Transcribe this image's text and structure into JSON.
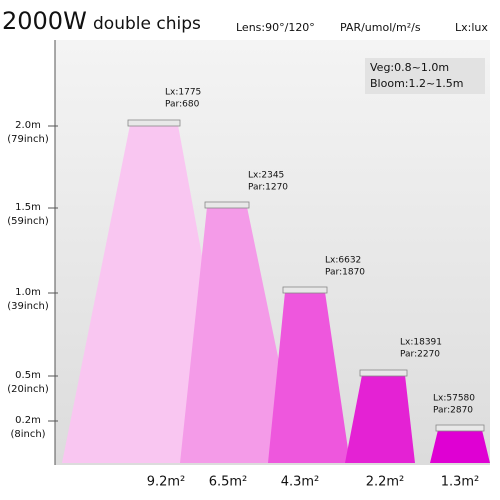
{
  "header": {
    "title": "2000W",
    "subtitle": "double chips",
    "lens": "Lens:90°/120°",
    "par_unit": "PAR/umol/m²/s",
    "lx_unit": "Lx:lux"
  },
  "legend_box": {
    "veg": "Veg:0.8~1.0m",
    "bloom": "Bloom:1.2~1.5m"
  },
  "heights": [
    {
      "m": "2.0m",
      "inch": "(79inch)"
    },
    {
      "m": "1.5m",
      "inch": "(59inch)"
    },
    {
      "m": "1.0m",
      "inch": "(39inch)"
    },
    {
      "m": "0.5m",
      "inch": "(20inch)"
    },
    {
      "m": "0.2m",
      "inch": "(8inch)"
    }
  ],
  "lamps": [
    {
      "lx": "Lx:1775",
      "par": "Par:680",
      "area": "9.2m²"
    },
    {
      "lx": "Lx:2345",
      "par": "Par:1270",
      "area": "6.5m²"
    },
    {
      "lx": "Lx:6632",
      "par": "Par:1870",
      "area": "4.3m²"
    },
    {
      "lx": "Lx:18391",
      "par": "Par:2270",
      "area": "2.2m²"
    },
    {
      "lx": "Lx:57580",
      "par": "Par:2870",
      "area": "1.3m²"
    }
  ]
}
